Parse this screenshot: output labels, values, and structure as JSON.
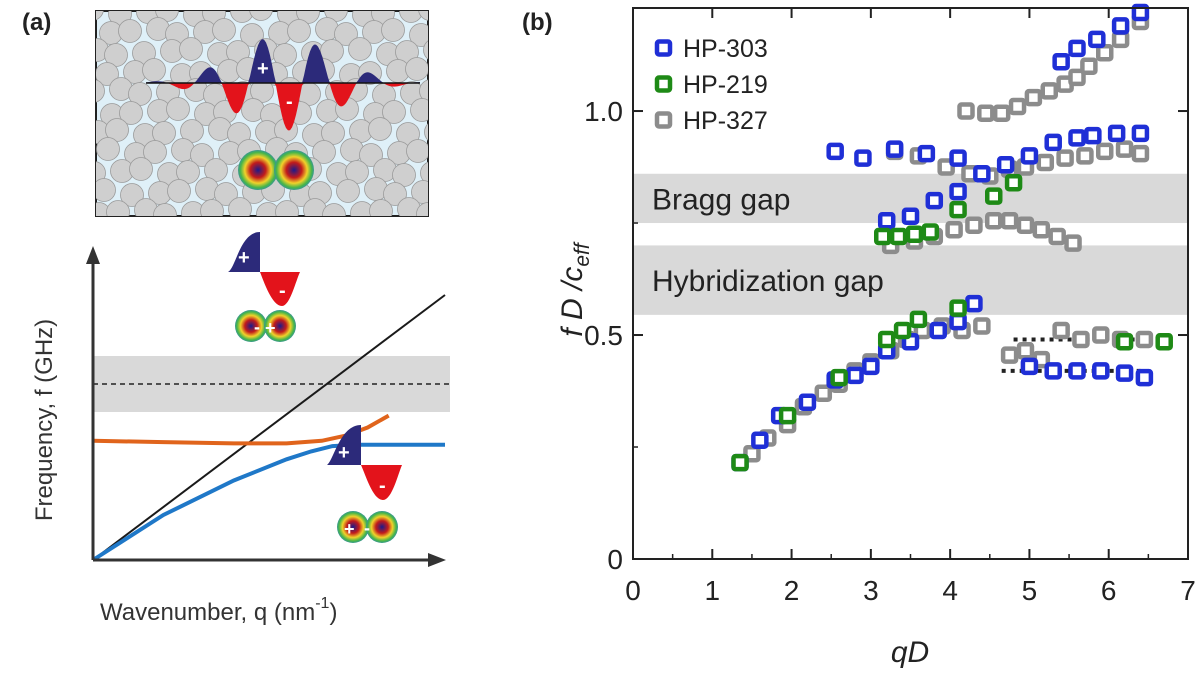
{
  "panel_a": {
    "label": "(a)",
    "ylabel": "Frequency, f (GHz)",
    "xlabel": "Wavenumber, q (nm",
    "xlabel_exp": "-1",
    "xlabel_close": ")",
    "plus": "+",
    "minus": "-"
  },
  "panel_b": {
    "label": "(b)",
    "bragg_gap": "Bragg gap",
    "hybridization_gap": "Hybridization gap"
  },
  "colors": {
    "HP-303": "#1f2fd6",
    "HP-219": "#1e8a16",
    "HP-327": "#8c8c8c",
    "gap": "#d9d9d9",
    "upper_branch": "#e0641c",
    "lower_branch": "#1f78c8",
    "wave_positive": "#2c2a7a",
    "wave_negative": "#e3131b"
  },
  "chart_data": [
    {
      "type": "line",
      "panel": "(a)",
      "title": "",
      "xlabel": "Wavenumber, q (nm^-1)",
      "ylabel": "Frequency, f (GHz)",
      "xlim": [
        0,
        1
      ],
      "ylim": [
        0,
        1
      ],
      "axis_ticks": false,
      "series": [
        {
          "style": "black",
          "x": [
            0,
            1
          ],
          "y": [
            0,
            1
          ]
        },
        {
          "style": "upper_branch",
          "x": [
            0,
            0.2,
            0.4,
            0.55,
            0.65,
            0.72,
            0.78,
            0.84
          ],
          "y": [
            0.45,
            0.445,
            0.44,
            0.44,
            0.45,
            0.47,
            0.5,
            0.545
          ]
        },
        {
          "style": "lower_branch",
          "x": [
            0,
            0.2,
            0.4,
            0.55,
            0.62,
            0.68,
            0.75,
            0.82,
            1.0
          ],
          "y": [
            0,
            0.17,
            0.3,
            0.38,
            0.41,
            0.43,
            0.435,
            0.435,
            0.435
          ]
        }
      ],
      "band": {
        "y": [
          0.37,
          0.52
        ]
      },
      "dashed_line": {
        "y": 0.445
      }
    },
    {
      "type": "scatter",
      "panel": "(b)",
      "title": "",
      "xlabel": "qD",
      "ylabel": "f D /c_eff",
      "xlim": [
        0,
        7
      ],
      "ylim": [
        0,
        1.23
      ],
      "xticks": [
        0,
        1,
        2,
        3,
        4,
        5,
        6,
        7
      ],
      "yticks": [
        0,
        0.5,
        1.0
      ],
      "ytick_labels": [
        "0",
        "0.5",
        "1.0"
      ],
      "legend": "top-left",
      "bands": [
        {
          "label": "Bragg gap",
          "y": [
            0.75,
            0.86
          ]
        },
        {
          "label": "Hybridization gap",
          "y": [
            0.545,
            0.7
          ]
        }
      ],
      "dotted_lines": [
        {
          "x": [
            4.8,
            6.7
          ],
          "y": 0.49
        },
        {
          "x": [
            4.65,
            6.4
          ],
          "y": 0.42
        }
      ],
      "series": [
        {
          "name": "HP-303",
          "points": [
            [
              1.35,
              0.215
            ],
            [
              1.6,
              0.265
            ],
            [
              1.85,
              0.32
            ],
            [
              2.2,
              0.35
            ],
            [
              2.55,
              0.4
            ],
            [
              2.8,
              0.41
            ],
            [
              3.0,
              0.43
            ],
            [
              3.2,
              0.465
            ],
            [
              3.5,
              0.485
            ],
            [
              3.85,
              0.51
            ],
            [
              4.1,
              0.53
            ],
            [
              4.3,
              0.57
            ],
            [
              3.2,
              0.755
            ],
            [
              3.5,
              0.765
            ],
            [
              3.8,
              0.8
            ],
            [
              4.1,
              0.82
            ],
            [
              4.4,
              0.86
            ],
            [
              4.7,
              0.88
            ],
            [
              5.0,
              0.9
            ],
            [
              5.3,
              0.93
            ],
            [
              5.6,
              0.94
            ],
            [
              5.8,
              0.945
            ],
            [
              6.1,
              0.95
            ],
            [
              6.4,
              0.95
            ],
            [
              2.55,
              0.91
            ],
            [
              2.9,
              0.895
            ],
            [
              3.3,
              0.915
            ],
            [
              3.7,
              0.905
            ],
            [
              4.1,
              0.895
            ],
            [
              5.0,
              0.43
            ],
            [
              5.3,
              0.42
            ],
            [
              5.6,
              0.42
            ],
            [
              5.9,
              0.42
            ],
            [
              6.2,
              0.415
            ],
            [
              6.45,
              0.405
            ],
            [
              5.4,
              1.11
            ],
            [
              5.6,
              1.14
            ],
            [
              5.85,
              1.16
            ],
            [
              6.15,
              1.19
            ],
            [
              6.4,
              1.22
            ]
          ]
        },
        {
          "name": "HP-219",
          "points": [
            [
              1.35,
              0.215
            ],
            [
              1.95,
              0.32
            ],
            [
              2.6,
              0.405
            ],
            [
              3.2,
              0.49
            ],
            [
              3.4,
              0.51
            ],
            [
              3.6,
              0.535
            ],
            [
              4.1,
              0.56
            ],
            [
              3.15,
              0.72
            ],
            [
              3.35,
              0.72
            ],
            [
              3.55,
              0.725
            ],
            [
              3.75,
              0.73
            ],
            [
              4.1,
              0.78
            ],
            [
              4.55,
              0.81
            ],
            [
              4.8,
              0.84
            ],
            [
              6.2,
              0.485
            ],
            [
              6.7,
              0.485
            ]
          ]
        },
        {
          "name": "HP-327",
          "points": [
            [
              1.5,
              0.235
            ],
            [
              1.7,
              0.27
            ],
            [
              1.95,
              0.3
            ],
            [
              2.15,
              0.34
            ],
            [
              2.4,
              0.37
            ],
            [
              2.6,
              0.39
            ],
            [
              2.8,
              0.42
            ],
            [
              3.0,
              0.44
            ],
            [
              3.25,
              0.465
            ],
            [
              3.45,
              0.49
            ],
            [
              3.65,
              0.51
            ],
            [
              3.9,
              0.52
            ],
            [
              4.15,
              0.51
            ],
            [
              4.4,
              0.52
            ],
            [
              3.25,
              0.7
            ],
            [
              3.55,
              0.71
            ],
            [
              3.8,
              0.72
            ],
            [
              4.05,
              0.735
            ],
            [
              4.3,
              0.745
            ],
            [
              4.55,
              0.755
            ],
            [
              4.75,
              0.755
            ],
            [
              4.95,
              0.745
            ],
            [
              5.15,
              0.735
            ],
            [
              5.35,
              0.72
            ],
            [
              5.55,
              0.705
            ],
            [
              3.3,
              0.91
            ],
            [
              3.6,
              0.9
            ],
            [
              3.95,
              0.875
            ],
            [
              4.25,
              0.86
            ],
            [
              4.5,
              0.855
            ],
            [
              4.75,
              0.87
            ],
            [
              4.95,
              0.875
            ],
            [
              5.2,
              0.885
            ],
            [
              5.45,
              0.895
            ],
            [
              5.7,
              0.9
            ],
            [
              5.95,
              0.91
            ],
            [
              6.2,
              0.915
            ],
            [
              6.4,
              0.905
            ],
            [
              4.2,
              1.0
            ],
            [
              4.45,
              0.995
            ],
            [
              4.65,
              0.995
            ],
            [
              4.85,
              1.01
            ],
            [
              5.05,
              1.03
            ],
            [
              5.25,
              1.045
            ],
            [
              5.45,
              1.06
            ],
            [
              5.6,
              1.075
            ],
            [
              5.75,
              1.1
            ],
            [
              5.95,
              1.13
            ],
            [
              6.15,
              1.16
            ],
            [
              6.4,
              1.2
            ],
            [
              4.75,
              0.455
            ],
            [
              4.95,
              0.465
            ],
            [
              5.15,
              0.445
            ],
            [
              5.4,
              0.51
            ],
            [
              5.65,
              0.49
            ],
            [
              5.9,
              0.5
            ],
            [
              6.15,
              0.49
            ],
            [
              6.45,
              0.49
            ]
          ]
        }
      ]
    }
  ]
}
